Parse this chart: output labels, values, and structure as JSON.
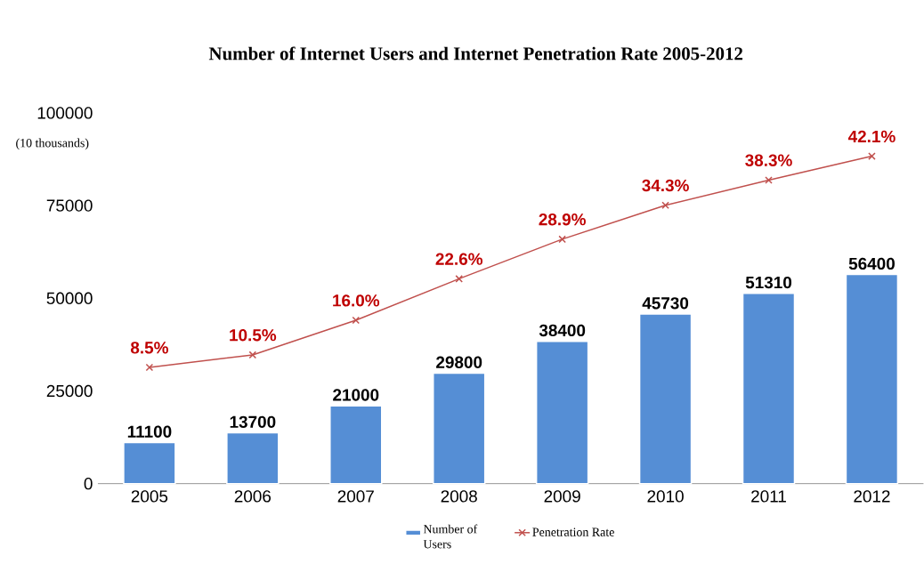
{
  "chart_data": {
    "type": "bar",
    "title": "Number of Internet Users and Internet Penetration Rate 2005-2012",
    "ylabel": "(10 thousands)",
    "categories": [
      "2005",
      "2006",
      "2007",
      "2008",
      "2009",
      "2010",
      "2011",
      "2012"
    ],
    "series": [
      {
        "name": "Number of Users",
        "color": "#558ed5",
        "values": [
          11100,
          13700,
          21000,
          29800,
          38400,
          45730,
          51310,
          56400
        ],
        "value_labels": [
          "11100",
          "13700",
          "21000",
          "29800",
          "38400",
          "45730",
          "51310",
          "56400"
        ]
      },
      {
        "name": "Penetration Rate",
        "type": "line",
        "axis": "y2",
        "color": "#c0504d",
        "values": [
          8.5,
          10.5,
          16.0,
          22.6,
          28.9,
          34.3,
          38.3,
          42.1
        ],
        "value_labels": [
          "8.5%",
          "10.5%",
          "16.0%",
          "22.6%",
          "28.9%",
          "34.3%",
          "38.3%",
          "42.1%"
        ]
      }
    ],
    "ylim": [
      0,
      100000
    ],
    "yticks": [
      0,
      25000,
      50000,
      75000,
      100000
    ],
    "legend": "bottom",
    "marker": "cross",
    "grid": false
  }
}
